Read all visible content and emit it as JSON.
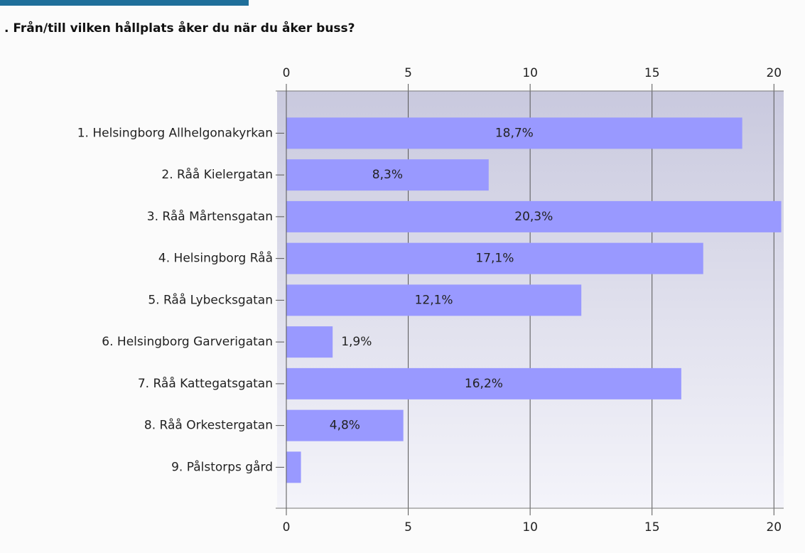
{
  "chart_data": {
    "type": "barh",
    "title": ". Från/till vilken hållplats åker du när du åker buss?",
    "categories": [
      "1. Helsingborg Allhelgonakyrkan",
      "2. Råå Kielergatan",
      "3. Råå Mårtensgatan",
      "4. Helsingborg Råå",
      "5. Råå Lybecksgatan",
      "6. Helsingborg Garverigatan",
      "7. Råå Kattegatsgatan",
      "8. Råå Orkestergatan",
      "9. Pålstorps gård"
    ],
    "values": [
      18.7,
      8.3,
      20.3,
      17.1,
      12.1,
      1.9,
      16.2,
      4.8,
      0.6
    ],
    "value_labels": [
      "18,7%",
      "8,3%",
      "20,3%",
      "17,1%",
      "12,1%",
      "1,9%",
      "16,2%",
      "4,8%",
      null
    ],
    "color": "#9999ff",
    "xlim": [
      0,
      20.4
    ],
    "xticks": [
      0,
      5,
      10,
      15,
      20
    ],
    "grid": true
  }
}
